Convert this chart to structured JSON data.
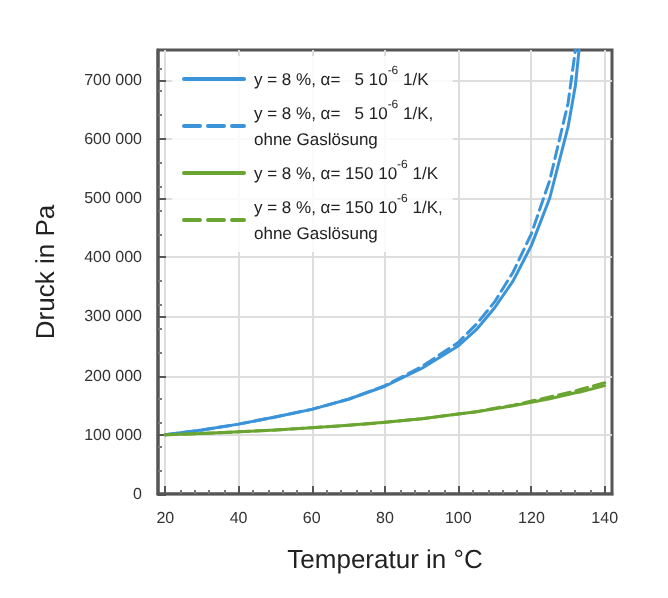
{
  "chart_data": {
    "type": "line",
    "xlabel": "Temperatur in °C",
    "ylabel": "Druck in Pa",
    "x": [
      20,
      30,
      40,
      50,
      60,
      70,
      80,
      90,
      100,
      105,
      110,
      115,
      120,
      125,
      130,
      132,
      133,
      140
    ],
    "series": [
      {
        "name": "y = 8 %, α=   5 10$^{-6}$ 1/K",
        "color": "#3b94d9",
        "line_style": "solid",
        "values": [
          100000,
          108000,
          118000,
          130000,
          143000,
          160000,
          182000,
          212000,
          250000,
          278000,
          315000,
          360000,
          420000,
          500000,
          620000,
          690000,
          750000,
          null
        ]
      },
      {
        "name": "y = 8 %, α=   5 10$^{-6}$ 1/K,\nohne Gaslösung",
        "color": "#3b94d9",
        "line_style": "dashed",
        "values": [
          100000,
          108000,
          118000,
          130000,
          143000,
          160000,
          183000,
          215000,
          256000,
          287000,
          325000,
          375000,
          440000,
          530000,
          660000,
          750000,
          null,
          null
        ]
      },
      {
        "name": "y = 8 %, α= 150 10$^{-6}$ 1/K",
        "color": "#6aa531",
        "line_style": "solid",
        "values": [
          100000,
          102000,
          105000,
          108000,
          112000,
          116000,
          121000,
          127000,
          135000,
          139000,
          144000,
          149000,
          155000,
          161000,
          168000,
          171000,
          172000,
          183000
        ]
      },
      {
        "name": "y = 8 %, α= 150 10$^{-6}$ 1/K,\nohne Gaslösung",
        "color": "#6aa531",
        "line_style": "dashed",
        "values": [
          100000,
          102000,
          105000,
          108000,
          112000,
          116000,
          121000,
          127000,
          135000,
          139000,
          145000,
          150000,
          157000,
          164000,
          171000,
          174000,
          176000,
          188000
        ]
      }
    ],
    "xlim": [
      18,
      142
    ],
    "xticks": [
      20,
      40,
      60,
      80,
      100,
      120,
      140
    ],
    "ylim": [
      0,
      750000
    ],
    "yticks": [
      0,
      {
        "value": 100000,
        "label": "100 000"
      },
      {
        "value": 200000,
        "label": "200 000"
      },
      {
        "value": 300000,
        "label": "300 000"
      },
      {
        "value": 400000,
        "label": "400 000"
      },
      {
        "value": 500000,
        "label": "500 000"
      },
      {
        "value": 600000,
        "label": "600 000"
      },
      {
        "value": 700000,
        "label": "700 000"
      }
    ],
    "grid": true,
    "legend": "top left",
    "marker": "none"
  }
}
